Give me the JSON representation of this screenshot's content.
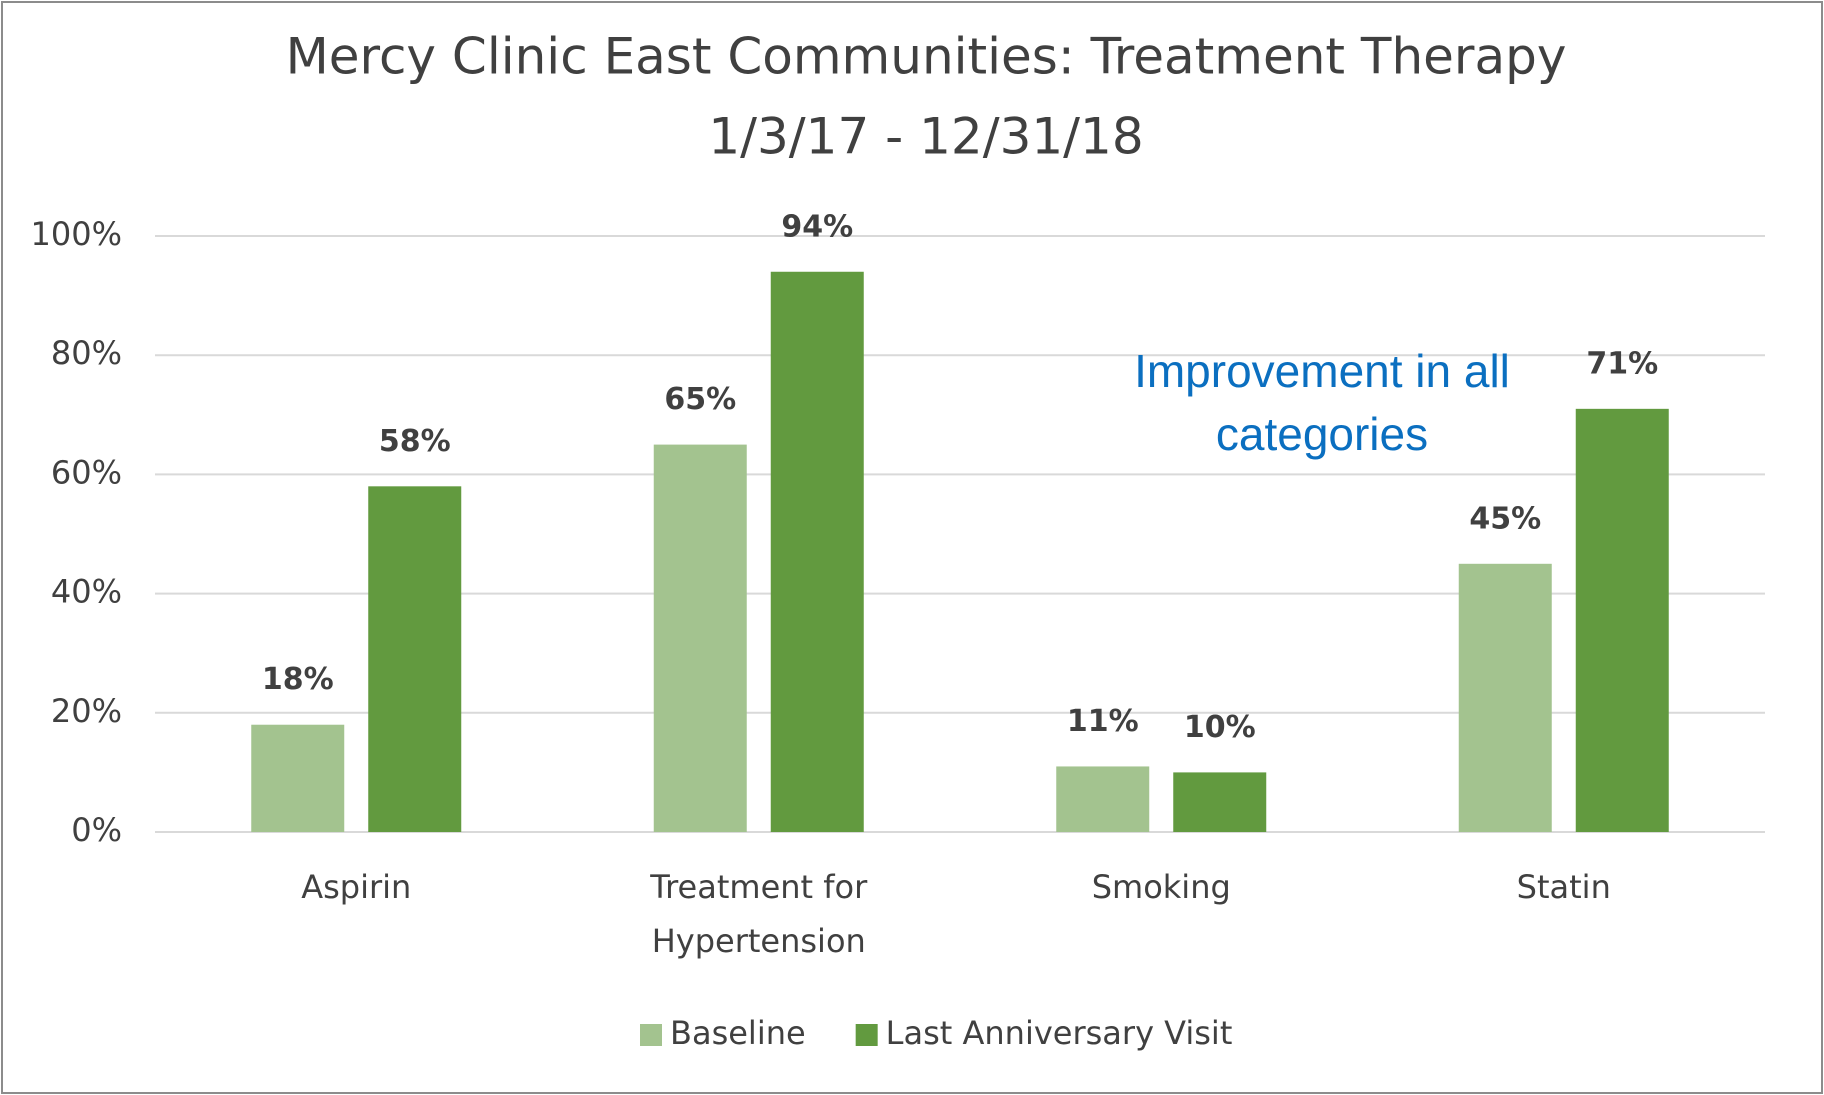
{
  "chart_data": {
    "type": "bar",
    "title": "Mercy Clinic East Communities: Treatment Therapy",
    "subtitle": "1/3/17 - 12/31/18",
    "annotation": "Improvement in all categories",
    "categories": [
      "Aspirin",
      "Treatment for Hypertension",
      "Smoking",
      "Statin"
    ],
    "series": [
      {
        "name": "Baseline",
        "color": "#a3c38f",
        "values": [
          18,
          65,
          11,
          45
        ],
        "value_labels": [
          "18%",
          "65%",
          "11%",
          "45%"
        ]
      },
      {
        "name": "Last Anniversary Visit",
        "color": "#629a3f",
        "values": [
          58,
          94,
          10,
          71
        ],
        "value_labels": [
          "58%",
          "94%",
          "10%",
          "71%"
        ]
      }
    ],
    "ylim": [
      0,
      100
    ],
    "yticks": [
      {
        "value": 0,
        "label": "0%"
      },
      {
        "value": 20,
        "label": "20%"
      },
      {
        "value": 40,
        "label": "40%"
      },
      {
        "value": 60,
        "label": "60%"
      },
      {
        "value": 80,
        "label": "80%"
      },
      {
        "value": 100,
        "label": "100%"
      }
    ],
    "grid": true,
    "legend": "bottom"
  }
}
